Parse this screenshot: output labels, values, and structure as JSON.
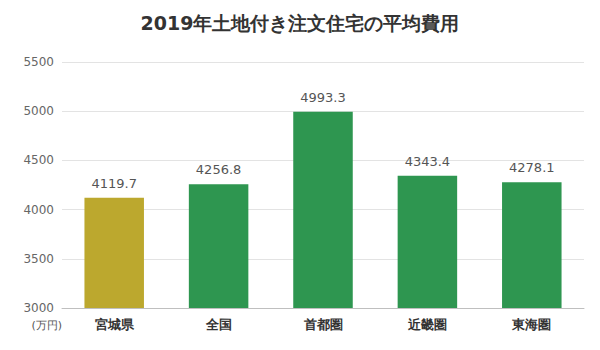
{
  "chart_data": {
    "type": "bar",
    "title": "2019年土地付き注文住宅の平均費用",
    "ylabel": "(万円)",
    "categories": [
      "宮城県",
      "全国",
      "首都圏",
      "近畿圏",
      "東海圏"
    ],
    "values": [
      4119.7,
      4256.8,
      4993.3,
      4343.4,
      4278.1
    ],
    "colors": [
      "#bca82e",
      "#2e9650",
      "#2e9650",
      "#2e9650",
      "#2e9650"
    ],
    "ylim": [
      3000,
      5500
    ],
    "yticks": [
      3000,
      3500,
      4000,
      4500,
      5000,
      5500
    ],
    "grid": true,
    "data_labels": true
  }
}
